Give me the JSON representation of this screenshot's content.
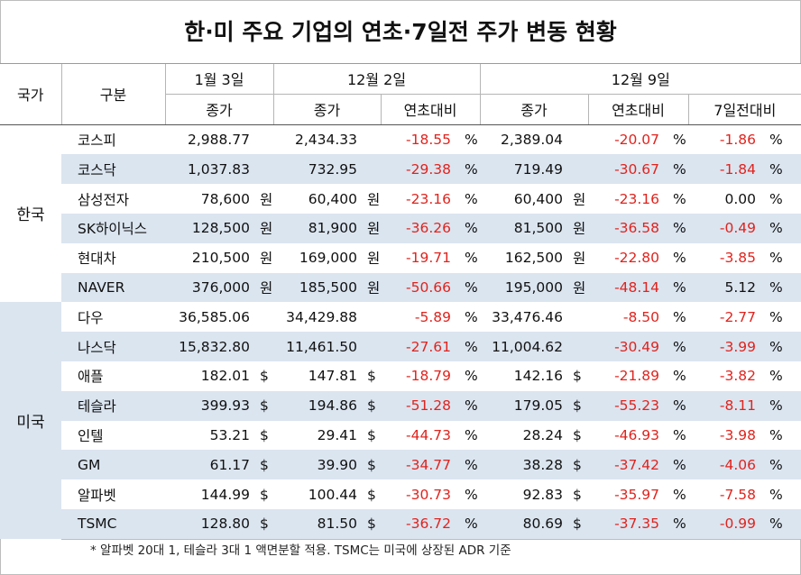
{
  "title": "한·미 주요 기업의 연초·7일전 주가 변동 현황",
  "headers": {
    "country": "국가",
    "category": "구분",
    "jan3": "1월 3일",
    "dec2": "12월 2일",
    "dec9": "12월 9일",
    "close": "종가",
    "ytd": "연초대비",
    "week": "7일전대비"
  },
  "countries": {
    "korea": "한국",
    "usa": "미국"
  },
  "rows": [
    {
      "name": "코스피",
      "jan3": "2,988.77",
      "jan3_unit": "",
      "dec2": "2,434.33",
      "dec2_unit": "",
      "dec2_ytd": "-18.55",
      "pct1": "%",
      "dec9": "2,389.04",
      "dec9_unit": "",
      "dec9_ytd": "-20.07",
      "pct2": "%",
      "week": "-1.86",
      "pct3": "%"
    },
    {
      "name": "코스닥",
      "jan3": "1,037.83",
      "jan3_unit": "",
      "dec2": "732.95",
      "dec2_unit": "",
      "dec2_ytd": "-29.38",
      "pct1": "%",
      "dec9": "719.49",
      "dec9_unit": "",
      "dec9_ytd": "-30.67",
      "pct2": "%",
      "week": "-1.84",
      "pct3": "%"
    },
    {
      "name": "삼성전자",
      "jan3": "78,600",
      "jan3_unit": "원",
      "dec2": "60,400",
      "dec2_unit": "원",
      "dec2_ytd": "-23.16",
      "pct1": "%",
      "dec9": "60,400",
      "dec9_unit": "원",
      "dec9_ytd": "-23.16",
      "pct2": "%",
      "week": "0.00",
      "pct3": "%"
    },
    {
      "name": "SK하이닉스",
      "jan3": "128,500",
      "jan3_unit": "원",
      "dec2": "81,900",
      "dec2_unit": "원",
      "dec2_ytd": "-36.26",
      "pct1": "%",
      "dec9": "81,500",
      "dec9_unit": "원",
      "dec9_ytd": "-36.58",
      "pct2": "%",
      "week": "-0.49",
      "pct3": "%"
    },
    {
      "name": "현대차",
      "jan3": "210,500",
      "jan3_unit": "원",
      "dec2": "169,000",
      "dec2_unit": "원",
      "dec2_ytd": "-19.71",
      "pct1": "%",
      "dec9": "162,500",
      "dec9_unit": "원",
      "dec9_ytd": "-22.80",
      "pct2": "%",
      "week": "-3.85",
      "pct3": "%"
    },
    {
      "name": "NAVER",
      "jan3": "376,000",
      "jan3_unit": "원",
      "dec2": "185,500",
      "dec2_unit": "원",
      "dec2_ytd": "-50.66",
      "pct1": "%",
      "dec9": "195,000",
      "dec9_unit": "원",
      "dec9_ytd": "-48.14",
      "pct2": "%",
      "week": "5.12",
      "pct3": "%"
    },
    {
      "name": "다우",
      "jan3": "36,585.06",
      "jan3_unit": "",
      "dec2": "34,429.88",
      "dec2_unit": "",
      "dec2_ytd": "-5.89",
      "pct1": "%",
      "dec9": "33,476.46",
      "dec9_unit": "",
      "dec9_ytd": "-8.50",
      "pct2": "%",
      "week": "-2.77",
      "pct3": "%"
    },
    {
      "name": "나스닥",
      "jan3": "15,832.80",
      "jan3_unit": "",
      "dec2": "11,461.50",
      "dec2_unit": "",
      "dec2_ytd": "-27.61",
      "pct1": "%",
      "dec9": "11,004.62",
      "dec9_unit": "",
      "dec9_ytd": "-30.49",
      "pct2": "%",
      "week": "-3.99",
      "pct3": "%"
    },
    {
      "name": "애플",
      "jan3": "182.01",
      "jan3_unit": "$",
      "dec2": "147.81",
      "dec2_unit": "$",
      "dec2_ytd": "-18.79",
      "pct1": "%",
      "dec9": "142.16",
      "dec9_unit": "$",
      "dec9_ytd": "-21.89",
      "pct2": "%",
      "week": "-3.82",
      "pct3": "%"
    },
    {
      "name": "테슬라",
      "jan3": "399.93",
      "jan3_unit": "$",
      "dec2": "194.86",
      "dec2_unit": "$",
      "dec2_ytd": "-51.28",
      "pct1": "%",
      "dec9": "179.05",
      "dec9_unit": "$",
      "dec9_ytd": "-55.23",
      "pct2": "%",
      "week": "-8.11",
      "pct3": "%"
    },
    {
      "name": "인텔",
      "jan3": "53.21",
      "jan3_unit": "$",
      "dec2": "29.41",
      "dec2_unit": "$",
      "dec2_ytd": "-44.73",
      "pct1": "%",
      "dec9": "28.24",
      "dec9_unit": "$",
      "dec9_ytd": "-46.93",
      "pct2": "%",
      "week": "-3.98",
      "pct3": "%"
    },
    {
      "name": "GM",
      "jan3": "61.17",
      "jan3_unit": "$",
      "dec2": "39.90",
      "dec2_unit": "$",
      "dec2_ytd": "-34.77",
      "pct1": "%",
      "dec9": "38.28",
      "dec9_unit": "$",
      "dec9_ytd": "-37.42",
      "pct2": "%",
      "week": "-4.06",
      "pct3": "%"
    },
    {
      "name": "알파벳",
      "jan3": "144.99",
      "jan3_unit": "$",
      "dec2": "100.44",
      "dec2_unit": "$",
      "dec2_ytd": "-30.73",
      "pct1": "%",
      "dec9": "92.83",
      "dec9_unit": "$",
      "dec9_ytd": "-35.97",
      "pct2": "%",
      "week": "-7.58",
      "pct3": "%"
    },
    {
      "name": "TSMC",
      "jan3": "128.80",
      "jan3_unit": "$",
      "dec2": "81.50",
      "dec2_unit": "$",
      "dec2_ytd": "-36.72",
      "pct1": "%",
      "dec9": "80.69",
      "dec9_unit": "$",
      "dec9_ytd": "-37.35",
      "pct2": "%",
      "week": "-0.99",
      "pct3": "%"
    }
  ],
  "note": "* 알파벳 20대 1, 테슬라 3대 1 액면분할 적용. TSMC는 미국에 상장된 ADR 기준",
  "colors": {
    "negative": "#e0231d",
    "row_shade": "#dbe5f0"
  }
}
